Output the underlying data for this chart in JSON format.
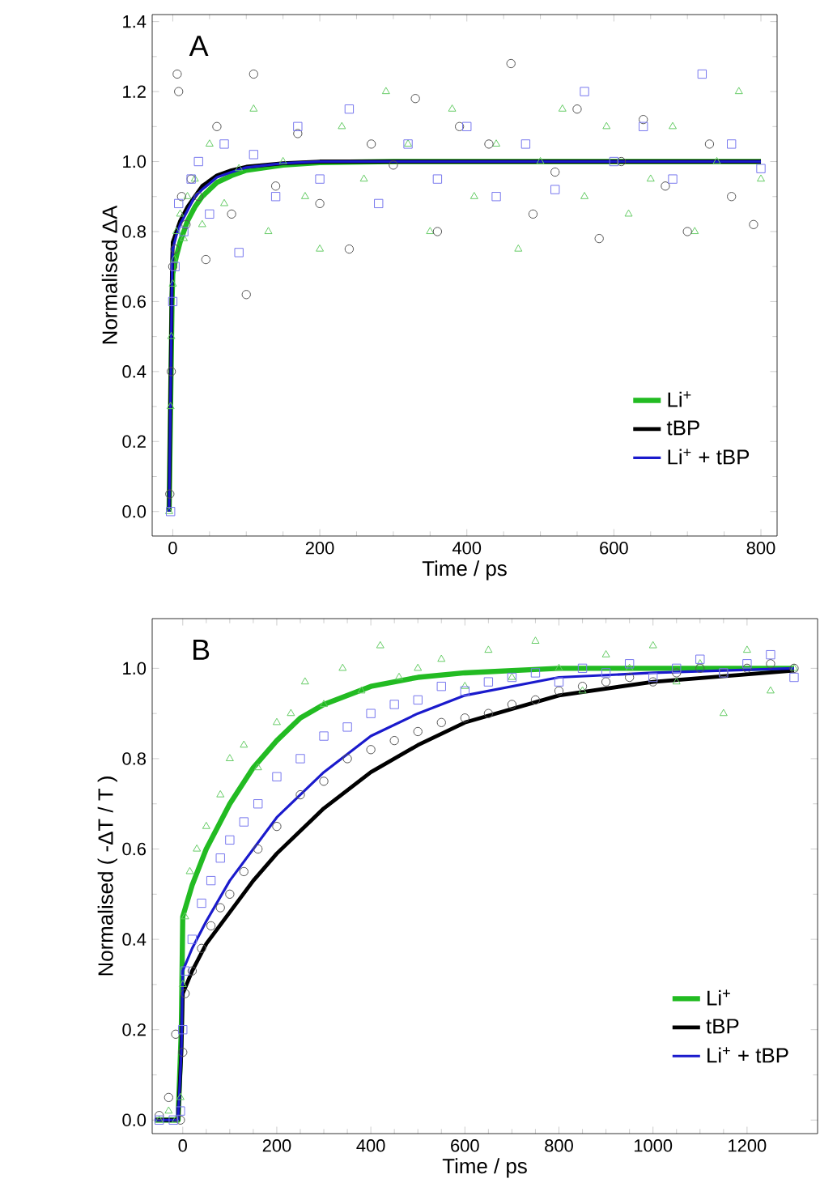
{
  "chart_data": [
    {
      "type": "scatter",
      "xlabel": "Time / ps",
      "ylabel": "Normalised ΔA",
      "annotations": [
        "A"
      ],
      "xlim": [
        -28,
        822
      ],
      "ylim": [
        -0.07,
        1.42
      ],
      "xticks": [
        0,
        200,
        400,
        600,
        800
      ],
      "yticks": [
        {
          "value": 0,
          "label": "0.0"
        },
        {
          "value": 0.2,
          "label": "0.2"
        },
        {
          "value": 0.4,
          "label": "0.4"
        },
        {
          "value": 0.6,
          "label": "0.6"
        },
        {
          "value": 0.8,
          "label": "0.8"
        },
        {
          "value": 1.0,
          "label": "1.0"
        },
        {
          "value": 1.2,
          "label": "1.2"
        },
        {
          "value": 1.4,
          "label": "1.4"
        }
      ],
      "legend": "bottom right",
      "grid": false,
      "series": [
        {
          "marker": "triangle",
          "color": "#66cc66",
          "x": [
            -5,
            -3,
            -2,
            0,
            2,
            5,
            10,
            15,
            20,
            30,
            40,
            50,
            70,
            90,
            110,
            130,
            150,
            180,
            200,
            230,
            260,
            290,
            320,
            350,
            380,
            410,
            440,
            470,
            500,
            530,
            560,
            590,
            620,
            650,
            680,
            710,
            740,
            770,
            800
          ],
          "values": [
            0.0,
            0.3,
            0.5,
            0.65,
            0.72,
            0.8,
            0.85,
            0.78,
            0.9,
            0.95,
            0.82,
            1.05,
            0.88,
            0.98,
            1.15,
            0.8,
            1.0,
            0.9,
            0.75,
            1.1,
            0.95,
            1.2,
            1.05,
            0.8,
            1.15,
            0.9,
            1.05,
            0.75,
            1.0,
            1.15,
            0.9,
            1.1,
            0.85,
            0.95,
            1.1,
            0.8,
            1.0,
            1.2,
            0.95
          ]
        },
        {
          "marker": "circle",
          "color": "#555555",
          "x": [
            -4,
            -2,
            0,
            3,
            6,
            8,
            12,
            18,
            25,
            35,
            45,
            60,
            80,
            100,
            110,
            140,
            170,
            200,
            240,
            270,
            300,
            330,
            360,
            390,
            430,
            460,
            490,
            520,
            550,
            580,
            610,
            640,
            670,
            700,
            730,
            760,
            790
          ],
          "values": [
            0.05,
            0.4,
            0.7,
            0.75,
            1.25,
            1.2,
            0.9,
            0.82,
            0.95,
            0.9,
            0.72,
            1.1,
            0.85,
            0.62,
            1.25,
            0.93,
            1.08,
            0.88,
            0.75,
            1.05,
            0.99,
            1.18,
            0.8,
            1.1,
            1.05,
            1.28,
            0.85,
            0.97,
            1.15,
            0.78,
            1.0,
            1.12,
            0.93,
            0.8,
            1.05,
            0.9,
            0.82
          ]
        },
        {
          "marker": "square",
          "color": "#7777ee",
          "x": [
            -3,
            0,
            3,
            8,
            15,
            25,
            35,
            50,
            70,
            90,
            110,
            140,
            170,
            200,
            240,
            280,
            320,
            360,
            400,
            440,
            480,
            520,
            560,
            600,
            640,
            680,
            720,
            760,
            800
          ],
          "values": [
            0.0,
            0.6,
            0.7,
            0.88,
            0.8,
            0.95,
            1.0,
            0.85,
            1.05,
            0.74,
            1.02,
            0.9,
            1.1,
            0.95,
            1.15,
            0.88,
            1.05,
            0.95,
            1.1,
            0.9,
            1.05,
            0.92,
            1.2,
            1.0,
            1.1,
            0.95,
            1.25,
            1.05,
            0.98
          ]
        },
        {
          "type": "line",
          "marker": "none",
          "name": "Li$^{+}$",
          "color": "#22bb22",
          "x": [
            -5,
            -3,
            -1,
            0,
            5,
            10,
            20,
            30,
            40,
            60,
            80,
            100,
            150,
            200,
            300,
            800
          ],
          "values": [
            0,
            0.3,
            0.6,
            0.68,
            0.73,
            0.77,
            0.83,
            0.87,
            0.9,
            0.94,
            0.96,
            0.975,
            0.99,
            0.997,
            1.0,
            1.0
          ]
        },
        {
          "type": "line",
          "marker": "none",
          "name": "tBP",
          "color": "#000000",
          "x": [
            -5,
            -3,
            -1,
            0,
            5,
            10,
            20,
            30,
            40,
            60,
            80,
            100,
            150,
            200,
            800
          ],
          "values": [
            0,
            0.35,
            0.7,
            0.77,
            0.8,
            0.83,
            0.87,
            0.9,
            0.93,
            0.96,
            0.975,
            0.985,
            0.995,
            1.0,
            1.0
          ]
        },
        {
          "type": "line",
          "marker": "none",
          "name": "Li$^{+}$ + tBP",
          "color": "#1a1acc",
          "x": [
            -5,
            -3,
            -1,
            0,
            5,
            10,
            20,
            30,
            40,
            60,
            80,
            100,
            150,
            200,
            800
          ],
          "values": [
            0,
            0.33,
            0.68,
            0.75,
            0.79,
            0.82,
            0.86,
            0.9,
            0.92,
            0.955,
            0.97,
            0.983,
            0.995,
            1.0,
            1.0
          ]
        }
      ]
    },
    {
      "type": "scatter",
      "xlabel": "Time / ps",
      "ylabel": "Normalised ( -ΔT / T )",
      "annotations": [
        "B"
      ],
      "xlim": [
        -65,
        1350
      ],
      "ylim": [
        -0.03,
        1.11
      ],
      "xticks": [
        0,
        200,
        400,
        600,
        800,
        1000,
        1200
      ],
      "yticks": [
        {
          "value": 0,
          "label": "0.0"
        },
        {
          "value": 0.2,
          "label": "0.2"
        },
        {
          "value": 0.4,
          "label": "0.4"
        },
        {
          "value": 0.6,
          "label": "0.6"
        },
        {
          "value": 0.8,
          "label": "0.8"
        },
        {
          "value": 1.0,
          "label": "1.0"
        }
      ],
      "legend": "bottom right",
      "grid": false,
      "series": [
        {
          "marker": "triangle",
          "color": "#66cc66",
          "x": [
            -50,
            -30,
            -15,
            -5,
            0,
            5,
            15,
            30,
            50,
            80,
            100,
            130,
            160,
            200,
            230,
            260,
            300,
            340,
            380,
            420,
            460,
            500,
            550,
            600,
            650,
            700,
            750,
            800,
            850,
            900,
            950,
            1000,
            1050,
            1100,
            1150,
            1200,
            1250,
            1300
          ],
          "values": [
            0,
            0.02,
            0,
            0.05,
            0.3,
            0.45,
            0.55,
            0.6,
            0.65,
            0.72,
            0.8,
            0.83,
            0.78,
            0.88,
            0.9,
            0.97,
            0.92,
            1.0,
            0.95,
            1.05,
            0.98,
            1.0,
            1.02,
            0.96,
            1.04,
            0.98,
            1.06,
            1.0,
            0.95,
            1.03,
            1.0,
            1.05,
            0.97,
            1.01,
            0.9,
            1.04,
            0.95,
            1.0
          ]
        },
        {
          "marker": "circle",
          "color": "#555555",
          "x": [
            -50,
            -30,
            -15,
            -5,
            0,
            5,
            20,
            40,
            60,
            80,
            100,
            130,
            160,
            200,
            250,
            300,
            350,
            400,
            450,
            500,
            550,
            600,
            650,
            700,
            750,
            800,
            850,
            900,
            950,
            1000,
            1050,
            1100,
            1150,
            1200,
            1250,
            1300
          ],
          "values": [
            0.01,
            0.05,
            0.19,
            0.0,
            0.15,
            0.28,
            0.33,
            0.38,
            0.43,
            0.47,
            0.5,
            0.55,
            0.6,
            0.65,
            0.72,
            0.75,
            0.8,
            0.82,
            0.84,
            0.86,
            0.88,
            0.89,
            0.9,
            0.92,
            0.93,
            0.95,
            0.96,
            0.97,
            0.98,
            0.97,
            0.99,
            1.0,
            0.99,
            1.0,
            1.01,
            1.0
          ]
        },
        {
          "marker": "square",
          "color": "#7777ee",
          "x": [
            -50,
            -20,
            -5,
            0,
            5,
            20,
            40,
            60,
            80,
            100,
            130,
            160,
            200,
            250,
            300,
            350,
            400,
            450,
            500,
            550,
            600,
            650,
            700,
            750,
            800,
            850,
            900,
            950,
            1000,
            1050,
            1100,
            1150,
            1200,
            1250,
            1300
          ],
          "values": [
            0,
            0,
            0.02,
            0.2,
            0.33,
            0.4,
            0.48,
            0.53,
            0.58,
            0.62,
            0.66,
            0.7,
            0.76,
            0.8,
            0.85,
            0.87,
            0.9,
            0.92,
            0.93,
            0.96,
            0.95,
            0.97,
            0.98,
            0.99,
            0.97,
            1.0,
            0.99,
            1.01,
            0.98,
            1.0,
            1.02,
            0.99,
            1.01,
            1.03,
            0.98
          ]
        },
        {
          "type": "line",
          "marker": "none",
          "name": "Li$^{+}$",
          "color": "#22bb22",
          "x": [
            -60,
            -10,
            -3,
            0,
            20,
            50,
            100,
            150,
            200,
            250,
            300,
            400,
            500,
            600,
            800,
            1300
          ],
          "values": [
            0,
            0,
            0.2,
            0.45,
            0.52,
            0.6,
            0.7,
            0.78,
            0.84,
            0.89,
            0.92,
            0.96,
            0.98,
            0.99,
            1.0,
            1.0
          ]
        },
        {
          "type": "line",
          "marker": "none",
          "name": "tBP",
          "color": "#000000",
          "x": [
            -60,
            -10,
            -3,
            0,
            20,
            50,
            100,
            150,
            200,
            300,
            400,
            500,
            600,
            800,
            1000,
            1300
          ],
          "values": [
            0,
            0,
            0.15,
            0.28,
            0.33,
            0.39,
            0.46,
            0.53,
            0.59,
            0.69,
            0.77,
            0.83,
            0.88,
            0.94,
            0.97,
            0.995
          ]
        },
        {
          "type": "line",
          "marker": "none",
          "name": "Li$^{+}$ + tBP",
          "color": "#1a1acc",
          "x": [
            -60,
            -10,
            -3,
            0,
            20,
            50,
            100,
            150,
            200,
            300,
            400,
            500,
            600,
            800,
            1000,
            1300
          ],
          "values": [
            0,
            0,
            0.15,
            0.33,
            0.38,
            0.44,
            0.53,
            0.6,
            0.67,
            0.77,
            0.85,
            0.9,
            0.94,
            0.98,
            0.99,
            1.0
          ]
        }
      ]
    }
  ]
}
